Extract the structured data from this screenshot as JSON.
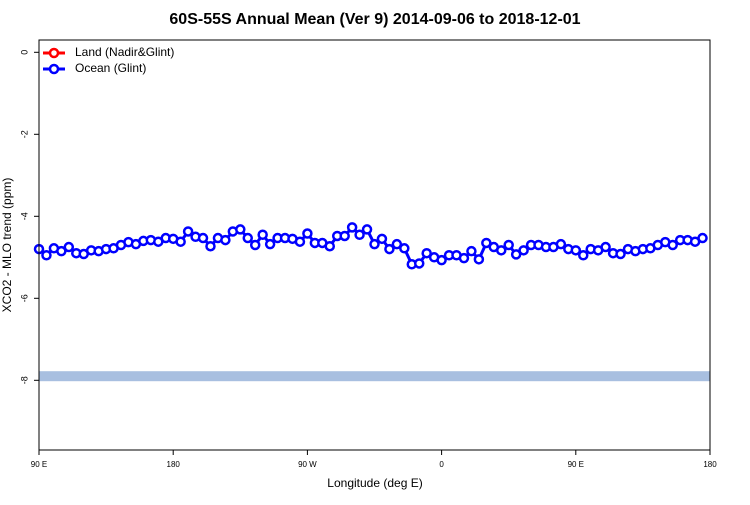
{
  "chart_data": {
    "type": "line",
    "title": "60S-55S Annual Mean (Ver 9)   2014-09-06 to 2018-12-01",
    "x_label": "Longitude (deg E)",
    "y_label": "XCO2 - MLO trend (ppm)",
    "xlim": [
      90,
      540
    ],
    "ylim": [
      -9.7,
      0.3
    ],
    "xticks": [
      {
        "value": 90,
        "label": "90 E"
      },
      180,
      {
        "value": 270,
        "label": "90 W"
      },
      {
        "value": 360,
        "label": "0"
      },
      {
        "value": 450,
        "label": "90 E"
      },
      {
        "value": 540,
        "label": "180"
      }
    ],
    "yticks": [
      0,
      -2,
      -4,
      -6,
      -8
    ],
    "legend": "top-left",
    "band": {
      "value": -7.9,
      "color": "#a8bfe0"
    },
    "x": [
      90,
      95,
      100,
      105,
      110,
      115,
      120,
      125,
      130,
      135,
      140,
      145,
      150,
      155,
      160,
      165,
      170,
      175,
      180,
      185,
      190,
      195,
      200,
      205,
      210,
      215,
      220,
      225,
      230,
      235,
      240,
      245,
      250,
      255,
      260,
      265,
      270,
      275,
      280,
      285,
      290,
      295,
      300,
      305,
      310,
      315,
      320,
      325,
      330,
      335,
      340,
      345,
      350,
      355,
      360,
      365,
      370,
      375,
      380,
      385,
      390,
      395,
      400,
      405,
      410,
      415,
      420,
      425,
      430,
      435,
      440,
      445,
      450,
      455,
      460,
      465,
      470,
      475,
      480,
      485,
      490,
      495,
      500,
      505,
      510,
      515,
      520,
      525,
      530,
      535
    ],
    "series": [
      {
        "name": "Land (Nadir&Glint)",
        "color": "#ff0000",
        "values": [
          null,
          null,
          null,
          null,
          null,
          null,
          null,
          null,
          null,
          null,
          null,
          null,
          null,
          null,
          null,
          null,
          null,
          null,
          null,
          null,
          null,
          null,
          null,
          null,
          null,
          null,
          null,
          null,
          null,
          null,
          null,
          null,
          null,
          null,
          null,
          null,
          null,
          null,
          null,
          null,
          null,
          null,
          null,
          null,
          null,
          null,
          null,
          null,
          null,
          null,
          null,
          null,
          null,
          null,
          null,
          null,
          null,
          null,
          null,
          null,
          null,
          null,
          null,
          null,
          null,
          null,
          null,
          null,
          null,
          null,
          null,
          null,
          null,
          null,
          null,
          null,
          null,
          null,
          null,
          null,
          null,
          null,
          null,
          null,
          null,
          null,
          null,
          null,
          null,
          null
        ]
      },
      {
        "name": "Ocean (Glint)",
        "color": "#0000ff",
        "values": [
          -4.8,
          -4.95,
          -4.78,
          -4.85,
          -4.75,
          -4.9,
          -4.92,
          -4.83,
          -4.85,
          -4.8,
          -4.78,
          -4.7,
          -4.63,
          -4.68,
          -4.6,
          -4.58,
          -4.62,
          -4.53,
          -4.55,
          -4.62,
          -4.37,
          -4.5,
          -4.53,
          -4.73,
          -4.53,
          -4.58,
          -4.37,
          -4.32,
          -4.53,
          -4.7,
          -4.45,
          -4.68,
          -4.53,
          -4.53,
          -4.55,
          -4.62,
          -4.42,
          -4.65,
          -4.65,
          -4.73,
          -4.48,
          -4.48,
          -4.27,
          -4.45,
          -4.32,
          -4.68,
          -4.55,
          -4.8,
          -4.68,
          -4.78,
          -5.17,
          -5.15,
          -4.9,
          -5.0,
          -5.07,
          -4.95,
          -4.95,
          -5.02,
          -4.85,
          -5.05,
          -4.65,
          -4.75,
          -4.83,
          -4.7,
          -4.93,
          -4.83,
          -4.7,
          -4.7,
          -4.75,
          -4.75,
          -4.68,
          -4.8,
          -4.83,
          -4.95,
          -4.8,
          -4.83,
          -4.75,
          -4.9,
          -4.92,
          -4.8,
          -4.85,
          -4.8,
          -4.78,
          -4.7,
          -4.63,
          -4.7,
          -4.58,
          -4.58,
          -4.62,
          -4.53
        ]
      }
    ]
  }
}
